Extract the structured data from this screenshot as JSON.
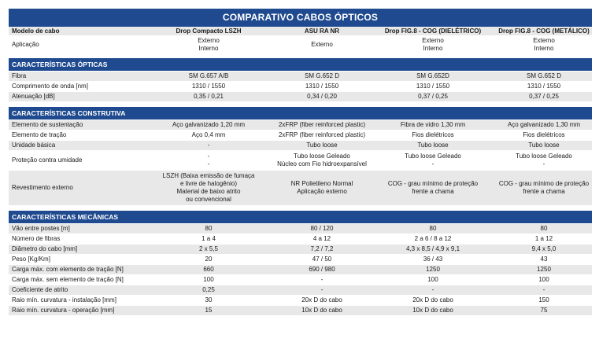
{
  "title": "COMPARATIVO CABOS ÓPTICOS",
  "header": {
    "label": "Modelo de cabo",
    "models": [
      "Drop Compacto LSZH",
      "ASU RA NR",
      "Drop FIG.8 - COG (DIELÉTRICO)",
      "Drop FIG.8 - COG (METÁLICO)"
    ]
  },
  "aplicacao": {
    "label": "Aplicação",
    "values": [
      [
        "Externo",
        "Interno"
      ],
      [
        "Externo"
      ],
      [
        "Externo",
        "Interno"
      ],
      [
        "Externo",
        "Interno"
      ]
    ]
  },
  "sections": [
    {
      "title": "CARACTERÍSTICAS ÓPTICAS",
      "rows": [
        {
          "label": "Fibra",
          "values": [
            [
              "SM G.657 A/B"
            ],
            [
              "SM G.652 D"
            ],
            [
              "SM G.652D"
            ],
            [
              "SM G.652 D"
            ]
          ]
        },
        {
          "label": "Comprimento de onda [nm]",
          "values": [
            [
              "1310 / 1550"
            ],
            [
              "1310 / 1550"
            ],
            [
              "1310 / 1550"
            ],
            [
              "1310 / 1550"
            ]
          ]
        },
        {
          "label": "Atenuação [dB]",
          "values": [
            [
              "0,35 / 0,21"
            ],
            [
              "0,34 / 0,20"
            ],
            [
              "0,37 / 0,25"
            ],
            [
              "0,37 / 0,25"
            ]
          ]
        }
      ]
    },
    {
      "title": "CARACTERÍSTICAS CONSTRUTIVA",
      "rows": [
        {
          "label": "Elemento de sustentação",
          "values": [
            [
              "Aço galvanizado 1,20 mm"
            ],
            [
              "2xFRP (fiber reinforced plastic)"
            ],
            [
              "Fibra de vidro 1,30 mm"
            ],
            [
              "Aço galvanizado 1,30 mm"
            ]
          ]
        },
        {
          "label": "Elemento de tração",
          "values": [
            [
              "Aço 0,4 mm"
            ],
            [
              "2xFRP (fiber reinforced plastic)"
            ],
            [
              "Fios dielétricos"
            ],
            [
              "Fios dielétricos"
            ]
          ]
        },
        {
          "label": "Unidade básica",
          "values": [
            [
              "-"
            ],
            [
              "Tubo loose"
            ],
            [
              "Tubo loose"
            ],
            [
              "Tubo loose"
            ]
          ]
        },
        {
          "label": "Proteção contra umidade",
          "values": [
            [
              "-",
              "-"
            ],
            [
              "Tubo loose Geleado",
              "Núcleo com Fio hidroexpansível"
            ],
            [
              "Tubo loose Geleado",
              "-"
            ],
            [
              "Tubo loose Geleado",
              "-"
            ]
          ]
        },
        {
          "label": "Revestimento externo",
          "values": [
            [
              "LSZH (Baixa emissão de fumaça",
              "e livre de halogênio)",
              "Material de baixo atrito",
              "ou convencional"
            ],
            [
              "NR Polietileno Normal",
              "Aplicação externo"
            ],
            [
              "COG - grau mínimo de proteção",
              "frente a chama"
            ],
            [
              "COG - grau mínimo de proteção",
              "frente a chama"
            ]
          ]
        }
      ]
    },
    {
      "title": "CARACTERÍSTICAS MECÂNICAS",
      "rows": [
        {
          "label": "Vão entre postes [m]",
          "values": [
            [
              "80"
            ],
            [
              "80 / 120"
            ],
            [
              "80"
            ],
            [
              "80"
            ]
          ]
        },
        {
          "label": "Número de fibras",
          "values": [
            [
              "1 a 4"
            ],
            [
              "4 a 12"
            ],
            [
              "2 a 6 / 8 a 12"
            ],
            [
              "1 a 12"
            ]
          ]
        },
        {
          "label": "Diâmetro do cabo [mm]",
          "values": [
            [
              "2 x 5,5"
            ],
            [
              "7,2 / 7,2"
            ],
            [
              "4,3 x 8,5 / 4,9 x 9,1"
            ],
            [
              "9,4 x 5,0"
            ]
          ]
        },
        {
          "label": "Peso [Kg/Km]",
          "values": [
            [
              "20"
            ],
            [
              "47 / 50"
            ],
            [
              "36 / 43"
            ],
            [
              "43"
            ]
          ]
        },
        {
          "label": "Carga máx. com elemento de tração [N]",
          "values": [
            [
              "660"
            ],
            [
              "690 / 980"
            ],
            [
              "1250"
            ],
            [
              "1250"
            ]
          ]
        },
        {
          "label": "Carga máx. sem elemento de tração [N]",
          "values": [
            [
              "100"
            ],
            [
              "-"
            ],
            [
              "100"
            ],
            [
              "100"
            ]
          ]
        },
        {
          "label": "Coeficiente de atrito",
          "values": [
            [
              "0,25"
            ],
            [
              "-"
            ],
            [
              "-"
            ],
            [
              "-"
            ]
          ]
        },
        {
          "label": "Raio mín. curvatura - instalação [mm]",
          "values": [
            [
              "30"
            ],
            [
              "20x D do cabo"
            ],
            [
              "20x D do cabo"
            ],
            [
              "150"
            ]
          ]
        },
        {
          "label": "Raio mín. curvatura - operação [mm]",
          "values": [
            [
              "15"
            ],
            [
              "10x D do cabo"
            ],
            [
              "10x D do cabo"
            ],
            [
              "75"
            ]
          ]
        }
      ]
    }
  ],
  "colors": {
    "accent": "#1f4a8f",
    "stripe": "#e8e8e8"
  }
}
